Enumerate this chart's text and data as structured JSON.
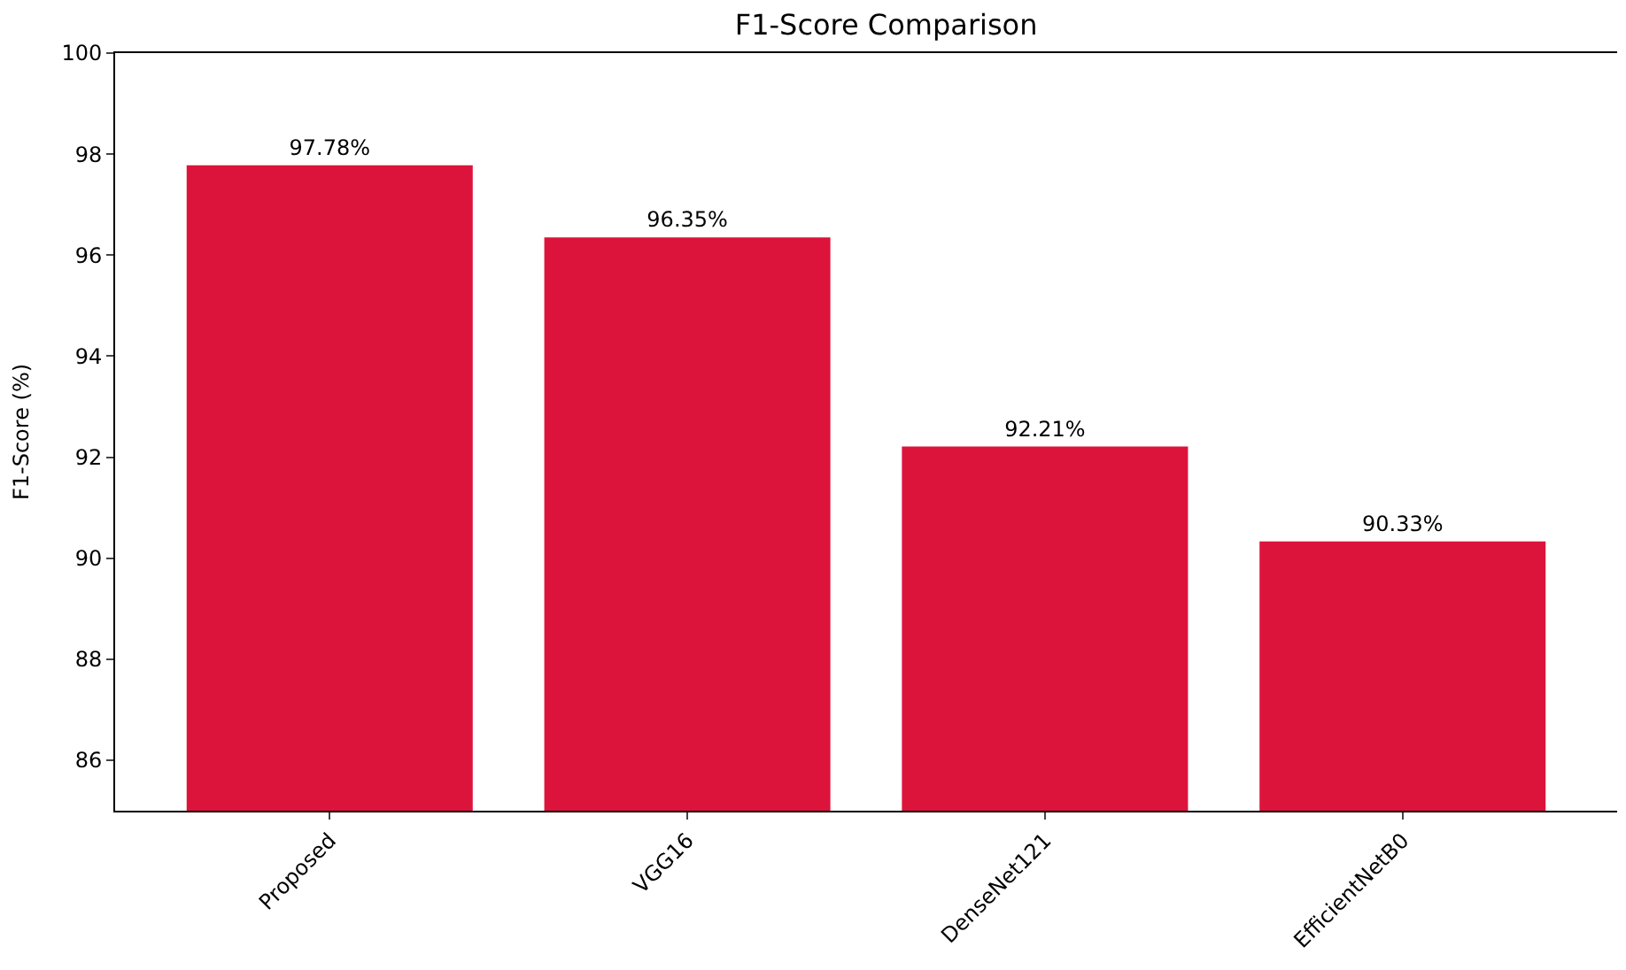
{
  "chart_data": {
    "type": "bar",
    "title": "F1-Score Comparison",
    "ylabel": "F1-Score (%)",
    "categories": [
      "Proposed",
      "VGG16",
      "DenseNet121",
      "EfficientNetB0"
    ],
    "values": [
      97.78,
      96.35,
      92.21,
      90.33
    ],
    "value_labels": [
      "97.78%",
      "96.35%",
      "92.21%",
      "90.33%"
    ],
    "color": "#dc143c",
    "ylim": [
      85,
      100
    ],
    "yticks": [
      86,
      88,
      90,
      92,
      94,
      96,
      98,
      100
    ]
  }
}
